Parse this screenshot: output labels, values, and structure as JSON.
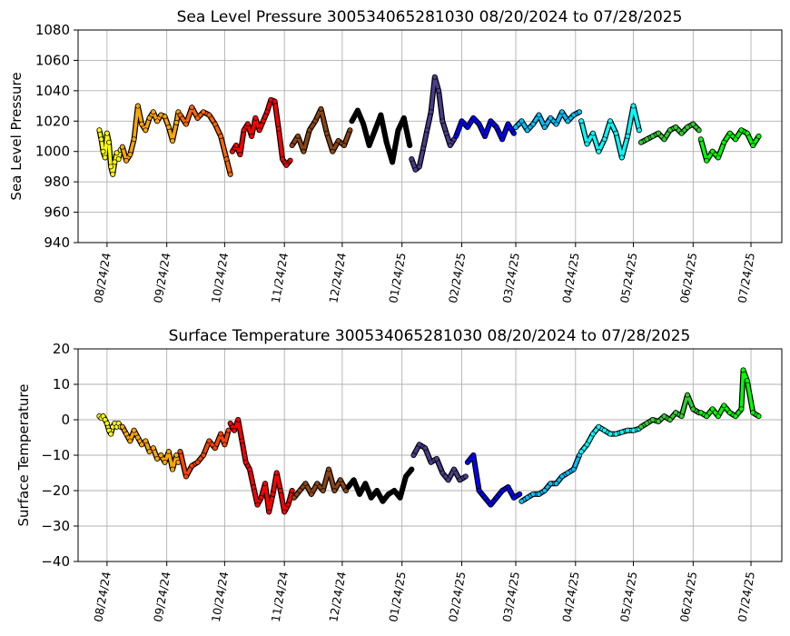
{
  "chart_data": [
    {
      "type": "scatter",
      "title": "Sea Level Pressure 300534065281030  08/20/2024 to 07/28/2025",
      "ylabel": "Sea Level Pressure",
      "xlabel": "",
      "ylim": [
        940,
        1080
      ],
      "yticks": [
        940,
        960,
        980,
        1000,
        1020,
        1040,
        1060,
        1080
      ],
      "xlim": [
        "2024-08-09",
        "2025-08-09"
      ],
      "xticks": [
        {
          "date": "2024-08-24",
          "label": "08/24/24"
        },
        {
          "date": "2024-09-24",
          "label": "09/24/24"
        },
        {
          "date": "2024-10-24",
          "label": "10/24/24"
        },
        {
          "date": "2024-11-24",
          "label": "11/24/24"
        },
        {
          "date": "2024-12-24",
          "label": "12/24/24"
        },
        {
          "date": "2025-01-24",
          "label": "01/24/25"
        },
        {
          "date": "2025-02-24",
          "label": "02/24/25"
        },
        {
          "date": "2025-03-24",
          "label": "03/24/25"
        },
        {
          "date": "2025-04-24",
          "label": "04/24/25"
        },
        {
          "date": "2025-05-24",
          "label": "05/24/25"
        },
        {
          "date": "2025-06-24",
          "label": "06/24/25"
        },
        {
          "date": "2025-07-24",
          "label": "07/24/25"
        }
      ],
      "grid": true,
      "series": [
        {
          "color": "#ffff00",
          "x": [
            "2024-08-20",
            "2024-08-21",
            "2024-08-22",
            "2024-08-23",
            "2024-08-24",
            "2024-08-25",
            "2024-08-26",
            "2024-08-27",
            "2024-08-28",
            "2024-08-29",
            "2024-08-30",
            "2024-08-31"
          ],
          "y": [
            1014,
            1008,
            1000,
            996,
            1012,
            1006,
            990,
            985,
            993,
            999,
            995,
            1001
          ]
        },
        {
          "color": "#ffa500",
          "x": [
            "2024-09-01",
            "2024-09-03",
            "2024-09-05",
            "2024-09-07",
            "2024-09-09",
            "2024-09-11",
            "2024-09-13",
            "2024-09-15",
            "2024-09-17",
            "2024-09-19",
            "2024-09-21",
            "2024-09-23",
            "2024-09-25",
            "2024-09-27",
            "2024-09-29",
            "2024-09-30"
          ],
          "y": [
            1003,
            994,
            998,
            1008,
            1030,
            1018,
            1014,
            1022,
            1026,
            1020,
            1024,
            1023,
            1016,
            1007,
            1019,
            1026
          ]
        },
        {
          "color": "#ff6600",
          "x": [
            "2024-10-01",
            "2024-10-04",
            "2024-10-07",
            "2024-10-10",
            "2024-10-13",
            "2024-10-16",
            "2024-10-19",
            "2024-10-22",
            "2024-10-25",
            "2024-10-27"
          ],
          "y": [
            1024,
            1018,
            1029,
            1022,
            1026,
            1024,
            1018,
            1010,
            995,
            985
          ]
        },
        {
          "color": "#ff0000",
          "x": [
            "2024-10-28",
            "2024-10-30",
            "2024-11-01",
            "2024-11-03",
            "2024-11-05",
            "2024-11-07",
            "2024-11-09",
            "2024-11-11",
            "2024-11-13",
            "2024-11-15",
            "2024-11-17",
            "2024-11-19",
            "2024-11-21",
            "2024-11-23",
            "2024-11-25",
            "2024-11-27"
          ],
          "y": [
            1000,
            1004,
            998,
            1014,
            1018,
            1010,
            1022,
            1014,
            1020,
            1026,
            1034,
            1033,
            1015,
            995,
            991,
            994
          ]
        },
        {
          "color": "#8b4513",
          "x": [
            "2024-11-28",
            "2024-12-01",
            "2024-12-04",
            "2024-12-07",
            "2024-12-10",
            "2024-12-13",
            "2024-12-16",
            "2024-12-19",
            "2024-12-22",
            "2024-12-25",
            "2024-12-28"
          ],
          "y": [
            1004,
            1010,
            1000,
            1014,
            1020,
            1028,
            1012,
            1000,
            1007,
            1004,
            1014
          ]
        },
        {
          "color": "#000000",
          "x": [
            "2024-12-29",
            "2025-01-01",
            "2025-01-04",
            "2025-01-07",
            "2025-01-10",
            "2025-01-13",
            "2025-01-16",
            "2025-01-19",
            "2025-01-22",
            "2025-01-25",
            "2025-01-28"
          ],
          "y": [
            1020,
            1027,
            1018,
            1004,
            1014,
            1024,
            1006,
            993,
            1014,
            1022,
            1004
          ]
        },
        {
          "color": "#483d8b",
          "x": [
            "2025-01-29",
            "2025-01-31",
            "2025-02-02",
            "2025-02-04",
            "2025-02-06",
            "2025-02-08",
            "2025-02-10",
            "2025-02-12",
            "2025-02-14",
            "2025-02-16",
            "2025-02-18",
            "2025-02-20"
          ],
          "y": [
            995,
            988,
            990,
            1002,
            1014,
            1026,
            1049,
            1040,
            1020,
            1012,
            1004,
            1008
          ]
        },
        {
          "color": "#0000ff",
          "x": [
            "2025-02-21",
            "2025-02-24",
            "2025-02-27",
            "2025-03-02",
            "2025-03-05",
            "2025-03-08",
            "2025-03-11",
            "2025-03-14",
            "2025-03-17",
            "2025-03-20",
            "2025-03-23"
          ],
          "y": [
            1010,
            1020,
            1016,
            1022,
            1018,
            1010,
            1020,
            1016,
            1008,
            1018,
            1012
          ]
        },
        {
          "color": "#00bfff",
          "x": [
            "2025-03-24",
            "2025-03-27",
            "2025-03-30",
            "2025-04-02",
            "2025-04-05",
            "2025-04-08",
            "2025-04-11",
            "2025-04-14",
            "2025-04-17",
            "2025-04-20",
            "2025-04-23",
            "2025-04-26"
          ],
          "y": [
            1016,
            1020,
            1014,
            1018,
            1024,
            1016,
            1022,
            1018,
            1026,
            1020,
            1024,
            1026
          ]
        },
        {
          "color": "#00ffff",
          "x": [
            "2025-04-27",
            "2025-04-30",
            "2025-05-03",
            "2025-05-06",
            "2025-05-09",
            "2025-05-12",
            "2025-05-15",
            "2025-05-18",
            "2025-05-21",
            "2025-05-24",
            "2025-05-27"
          ],
          "y": [
            1020,
            1005,
            1012,
            1000,
            1008,
            1020,
            1012,
            996,
            1010,
            1030,
            1014
          ]
        },
        {
          "color": "#32cd32",
          "x": [
            "2025-05-28",
            "2025-05-31",
            "2025-06-03",
            "2025-06-06",
            "2025-06-09",
            "2025-06-12",
            "2025-06-15",
            "2025-06-18",
            "2025-06-21",
            "2025-06-24",
            "2025-06-27"
          ],
          "y": [
            1006,
            1008,
            1010,
            1012,
            1008,
            1014,
            1016,
            1012,
            1016,
            1018,
            1014
          ]
        },
        {
          "color": "#00ff00",
          "x": [
            "2025-06-28",
            "2025-07-01",
            "2025-07-04",
            "2025-07-07",
            "2025-07-10",
            "2025-07-13",
            "2025-07-16",
            "2025-07-19",
            "2025-07-22",
            "2025-07-25",
            "2025-07-28"
          ],
          "y": [
            1008,
            994,
            1000,
            996,
            1006,
            1012,
            1008,
            1014,
            1012,
            1004,
            1010
          ]
        }
      ]
    },
    {
      "type": "scatter",
      "title": "Surface Temperature 300534065281030  08/20/2024 to 07/28/2025",
      "ylabel": "Surface Temperature",
      "xlabel": "",
      "ylim": [
        -40,
        20
      ],
      "yticks": [
        -40,
        -30,
        -20,
        -10,
        0,
        10,
        20
      ],
      "xlim": [
        "2024-08-09",
        "2025-08-09"
      ],
      "xticks": [
        {
          "date": "2024-08-24",
          "label": "08/24/24"
        },
        {
          "date": "2024-09-24",
          "label": "09/24/24"
        },
        {
          "date": "2024-10-24",
          "label": "10/24/24"
        },
        {
          "date": "2024-11-24",
          "label": "11/24/24"
        },
        {
          "date": "2024-12-24",
          "label": "12/24/24"
        },
        {
          "date": "2025-01-24",
          "label": "01/24/25"
        },
        {
          "date": "2025-02-24",
          "label": "02/24/25"
        },
        {
          "date": "2025-03-24",
          "label": "03/24/25"
        },
        {
          "date": "2025-04-24",
          "label": "04/24/25"
        },
        {
          "date": "2025-05-24",
          "label": "05/24/25"
        },
        {
          "date": "2025-06-24",
          "label": "06/24/25"
        },
        {
          "date": "2025-07-24",
          "label": "07/24/25"
        }
      ],
      "grid": true,
      "series": [
        {
          "color": "#ffff00",
          "x": [
            "2024-08-20",
            "2024-08-21",
            "2024-08-22",
            "2024-08-23",
            "2024-08-24",
            "2024-08-25",
            "2024-08-26",
            "2024-08-27",
            "2024-08-28",
            "2024-08-29",
            "2024-08-30",
            "2024-08-31"
          ],
          "y": [
            1,
            0.5,
            1,
            0,
            -1,
            -3,
            -4,
            -2,
            -1,
            -2,
            -1,
            -2
          ]
        },
        {
          "color": "#ffa500",
          "x": [
            "2024-09-01",
            "2024-09-03",
            "2024-09-05",
            "2024-09-07",
            "2024-09-09",
            "2024-09-11",
            "2024-09-13",
            "2024-09-15",
            "2024-09-17",
            "2024-09-19",
            "2024-09-21",
            "2024-09-23",
            "2024-09-25",
            "2024-09-27",
            "2024-09-29",
            "2024-09-30"
          ],
          "y": [
            -2,
            -4,
            -6,
            -3,
            -5,
            -7,
            -6,
            -9,
            -8,
            -11,
            -10,
            -12,
            -9,
            -14,
            -10,
            -12
          ]
        },
        {
          "color": "#ff4500",
          "x": [
            "2024-10-01",
            "2024-10-04",
            "2024-10-07",
            "2024-10-10",
            "2024-10-13",
            "2024-10-16",
            "2024-10-19",
            "2024-10-22",
            "2024-10-24",
            "2024-10-26"
          ],
          "y": [
            -9,
            -16,
            -13,
            -12,
            -10,
            -6,
            -8,
            -4,
            -7,
            -3
          ]
        },
        {
          "color": "#ff0000",
          "x": [
            "2024-10-27",
            "2024-10-29",
            "2024-10-31",
            "2024-11-02",
            "2024-11-04",
            "2024-11-06",
            "2024-11-08",
            "2024-11-10",
            "2024-11-12",
            "2024-11-14",
            "2024-11-16",
            "2024-11-18",
            "2024-11-20",
            "2024-11-22",
            "2024-11-24",
            "2024-11-26",
            "2024-11-28"
          ],
          "y": [
            -1,
            -3,
            0,
            -6,
            -12,
            -14,
            -19,
            -24,
            -22,
            -18,
            -26,
            -21,
            -15,
            -20,
            -26,
            -24,
            -20
          ]
        },
        {
          "color": "#8b4513",
          "x": [
            "2024-11-29",
            "2024-12-02",
            "2024-12-05",
            "2024-12-08",
            "2024-12-11",
            "2024-12-14",
            "2024-12-17",
            "2024-12-20",
            "2024-12-23",
            "2024-12-26"
          ],
          "y": [
            -22,
            -20,
            -18,
            -21,
            -18,
            -20,
            -14,
            -20,
            -17,
            -20
          ]
        },
        {
          "color": "#000000",
          "x": [
            "2024-12-27",
            "2024-12-30",
            "2025-01-02",
            "2025-01-05",
            "2025-01-08",
            "2025-01-11",
            "2025-01-14",
            "2025-01-17",
            "2025-01-20",
            "2025-01-23",
            "2025-01-26",
            "2025-01-29"
          ],
          "y": [
            -19,
            -17,
            -21,
            -18,
            -22,
            -20,
            -23,
            -21,
            -20,
            -22,
            -16,
            -14
          ]
        },
        {
          "color": "#483d8b",
          "x": [
            "2025-01-30",
            "2025-02-02",
            "2025-02-05",
            "2025-02-08",
            "2025-02-11",
            "2025-02-14",
            "2025-02-17",
            "2025-02-20",
            "2025-02-23",
            "2025-02-26"
          ],
          "y": [
            -10,
            -7,
            -8,
            -12,
            -11,
            -15,
            -17,
            -14,
            -17,
            -16
          ]
        },
        {
          "color": "#0000ff",
          "x": [
            "2025-02-27",
            "2025-03-02",
            "2025-03-05",
            "2025-03-08",
            "2025-03-11",
            "2025-03-14",
            "2025-03-17",
            "2025-03-20",
            "2025-03-23",
            "2025-03-26"
          ],
          "y": [
            -12,
            -10,
            -20,
            -22,
            -24,
            -22,
            -20,
            -19,
            -22,
            -21
          ]
        },
        {
          "color": "#00bfff",
          "x": [
            "2025-03-27",
            "2025-03-30",
            "2025-04-02",
            "2025-04-05",
            "2025-04-08",
            "2025-04-11",
            "2025-04-14",
            "2025-04-17",
            "2025-04-20",
            "2025-04-23",
            "2025-04-26"
          ],
          "y": [
            -23,
            -22,
            -21,
            -21,
            -20,
            -18,
            -18,
            -16,
            -15,
            -14,
            -10
          ]
        },
        {
          "color": "#00ffff",
          "x": [
            "2025-04-27",
            "2025-04-30",
            "2025-05-03",
            "2025-05-06",
            "2025-05-09",
            "2025-05-12",
            "2025-05-15",
            "2025-05-18",
            "2025-05-21",
            "2025-05-24",
            "2025-05-27"
          ],
          "y": [
            -9,
            -7,
            -4,
            -2,
            -3,
            -4,
            -4,
            -3.5,
            -3,
            -3,
            -2.5
          ]
        },
        {
          "color": "#32cd32",
          "x": [
            "2025-05-28",
            "2025-05-31",
            "2025-06-03",
            "2025-06-06",
            "2025-06-09",
            "2025-06-12",
            "2025-06-15",
            "2025-06-18",
            "2025-06-21",
            "2025-06-24",
            "2025-06-27"
          ],
          "y": [
            -2,
            -1,
            0,
            -0.5,
            1,
            0,
            2,
            1,
            7,
            3,
            2
          ]
        },
        {
          "color": "#00ff00",
          "x": [
            "2025-06-28",
            "2025-07-01",
            "2025-07-04",
            "2025-07-07",
            "2025-07-10",
            "2025-07-13",
            "2025-07-16",
            "2025-07-19",
            "2025-07-20",
            "2025-07-22",
            "2025-07-25",
            "2025-07-28"
          ],
          "y": [
            2,
            1,
            3,
            1,
            4,
            2,
            1,
            3,
            14,
            11,
            2,
            1
          ]
        }
      ]
    }
  ]
}
